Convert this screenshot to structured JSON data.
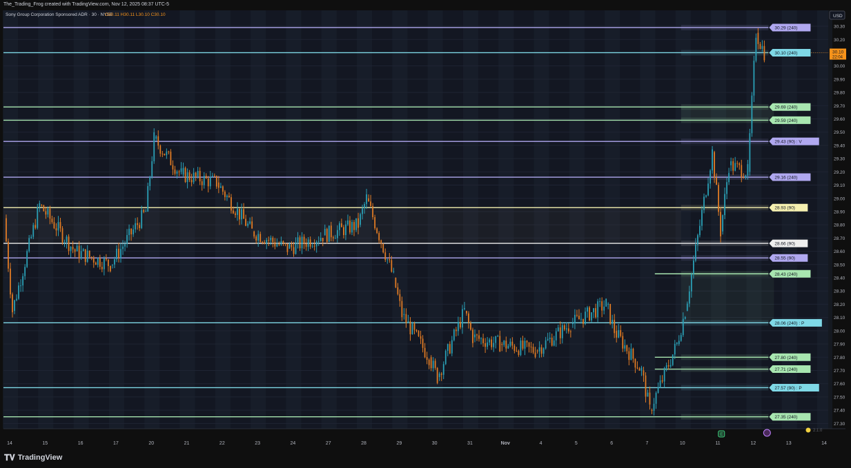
{
  "header": {
    "credit": "The_Trading_Frog created with TradingView.com, Nov 12, 2025 08:37 UTC-5"
  },
  "footer": {
    "logo_text": "TradingView",
    "version": "2.1.0",
    "event_badge": "E"
  },
  "colors": {
    "background": "#131722",
    "band_light": "#1c2230",
    "candle_up": "#2a9fb5",
    "candle_down": "#e07b24",
    "level_blue": "#b0a8f0",
    "level_cyan": "#7fd8e6",
    "level_green": "#a8e6b0",
    "level_yellow": "#f5f0b0",
    "level_white": "#eeeeee",
    "last_price": "#f7931a"
  },
  "chart_data": {
    "type": "candlestick",
    "title": "Sony Group Corporation Sponsored ADR · 30 · NYSE",
    "ohlc": {
      "O": "30.11",
      "H": "30.11",
      "L": "30.10",
      "C": "30.10"
    },
    "currency": "USD",
    "ylim": [
      27.26,
      30.42
    ],
    "y_ticks": [
      "30.30",
      "30.20",
      "30.10",
      "30.00",
      "29.90",
      "29.80",
      "29.70",
      "29.60",
      "29.50",
      "29.40",
      "29.30",
      "29.20",
      "29.10",
      "29.00",
      "28.90",
      "28.80",
      "28.70",
      "28.60",
      "28.50",
      "28.40",
      "28.30",
      "28.20",
      "28.10",
      "28.00",
      "27.90",
      "27.80",
      "27.70",
      "27.60",
      "27.50",
      "27.40",
      "27.30"
    ],
    "x_ticks": [
      "14",
      "15",
      "16",
      "17",
      "20",
      "21",
      "22",
      "23",
      "24",
      "27",
      "28",
      "29",
      "30",
      "31",
      "Nov",
      "4",
      "5",
      "6",
      "7",
      "10",
      "11",
      "12",
      "13",
      "14"
    ],
    "last_price": {
      "value": 30.1,
      "label": "30.10",
      "countdown": "22:04"
    },
    "levels": [
      {
        "value": 30.29,
        "label": "30.29 (240)",
        "color": "level_blue",
        "span": "full"
      },
      {
        "value": 30.1,
        "label": "30.10 (240)",
        "color": "level_cyan",
        "span": "full"
      },
      {
        "value": 29.69,
        "label": "29.69 (240)",
        "color": "level_green",
        "span": "full"
      },
      {
        "value": 29.59,
        "label": "29.59 (240)",
        "color": "level_green",
        "span": "full"
      },
      {
        "value": 29.43,
        "label": "29.43 (90) : V",
        "color": "level_blue",
        "span": "full"
      },
      {
        "value": 29.16,
        "label": "29.16 (240)",
        "color": "level_blue",
        "span": "full"
      },
      {
        "value": 28.93,
        "label": "28.93 (90)",
        "color": "level_yellow",
        "span": "full"
      },
      {
        "value": 28.66,
        "label": "28.66 (90)",
        "color": "level_white",
        "span": "full"
      },
      {
        "value": 28.55,
        "label": "28.55 (90)",
        "color": "level_blue",
        "span": "full"
      },
      {
        "value": 28.43,
        "label": "28.43 (240)",
        "color": "level_green",
        "span": "recent"
      },
      {
        "value": 28.06,
        "label": "28.06 (240) : P",
        "color": "level_cyan",
        "span": "full"
      },
      {
        "value": 27.8,
        "label": "27.80 (240)",
        "color": "level_green",
        "span": "recent"
      },
      {
        "value": 27.71,
        "label": "27.71 (240)",
        "color": "level_green",
        "span": "recent"
      },
      {
        "value": 27.57,
        "label": "27.57 (90) : P",
        "color": "level_cyan",
        "span": "full"
      },
      {
        "value": 27.35,
        "label": "27.35 (240)",
        "color": "level_green",
        "span": "full"
      }
    ],
    "price_path": [
      {
        "x": "14",
        "y": 28.85
      },
      {
        "x": "14",
        "y": 28.15
      },
      {
        "x": "15",
        "y": 28.95
      },
      {
        "x": "16",
        "y": 28.6
      },
      {
        "x": "17",
        "y": 28.5
      },
      {
        "x": "20",
        "y": 28.9
      },
      {
        "x": "20",
        "y": 29.45
      },
      {
        "x": "21",
        "y": 29.18
      },
      {
        "x": "22",
        "y": 29.12
      },
      {
        "x": "23",
        "y": 28.75
      },
      {
        "x": "24",
        "y": 28.62
      },
      {
        "x": "27",
        "y": 28.72
      },
      {
        "x": "28",
        "y": 28.8
      },
      {
        "x": "28",
        "y": 29.0
      },
      {
        "x": "29",
        "y": 28.4
      },
      {
        "x": "29",
        "y": 28.12
      },
      {
        "x": "30",
        "y": 27.8
      },
      {
        "x": "30",
        "y": 27.65
      },
      {
        "x": "31",
        "y": 28.15
      },
      {
        "x": "31",
        "y": 27.95
      },
      {
        "x": "Nov",
        "y": 27.9
      },
      {
        "x": "4",
        "y": 27.85
      },
      {
        "x": "5",
        "y": 28.05
      },
      {
        "x": "6",
        "y": 28.2
      },
      {
        "x": "6",
        "y": 28.0
      },
      {
        "x": "7",
        "y": 27.7
      },
      {
        "x": "7",
        "y": 27.4
      },
      {
        "x": "10",
        "y": 27.9
      },
      {
        "x": "10",
        "y": 28.15
      },
      {
        "x": "11",
        "y": 29.35
      },
      {
        "x": "11",
        "y": 28.75
      },
      {
        "x": "11",
        "y": 29.25
      },
      {
        "x": "12",
        "y": 29.2
      },
      {
        "x": "12",
        "y": 30.25
      },
      {
        "x": "12",
        "y": 30.1
      }
    ]
  }
}
